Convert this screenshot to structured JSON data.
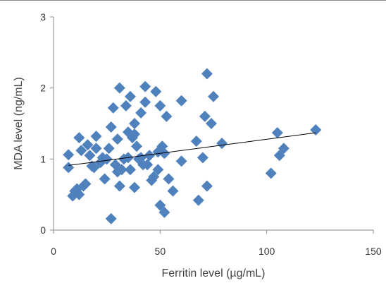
{
  "chart_data": {
    "type": "scatter",
    "xlabel": "Ferritin level (µg/mL)",
    "ylabel": "MDA level (ng/mL)",
    "xlim": [
      0,
      150
    ],
    "ylim": [
      0,
      3
    ],
    "x_ticks": [
      0,
      50,
      100,
      150
    ],
    "y_ticks": [
      0,
      1,
      2,
      3
    ],
    "x_tick_labels": [
      "0",
      "50",
      "100",
      "150"
    ],
    "y_tick_labels": [
      "0",
      "1",
      "2",
      "3"
    ],
    "grid": false,
    "legend": "none",
    "marker": "diamond",
    "colors": {
      "marker": "#4f81bd",
      "trendline": "#000000",
      "axis": "#888888"
    },
    "series": [
      {
        "points": [
          [
            7,
            1.06
          ],
          [
            7,
            0.88
          ],
          [
            9,
            0.48
          ],
          [
            10,
            0.55
          ],
          [
            11,
            0.58
          ],
          [
            12,
            0.5
          ],
          [
            12,
            1.3
          ],
          [
            13,
            1.12
          ],
          [
            14,
            0.62
          ],
          [
            15,
            0.65
          ],
          [
            16,
            1.2
          ],
          [
            17,
            1.05
          ],
          [
            18,
            0.9
          ],
          [
            19,
            0.88
          ],
          [
            20,
            1.15
          ],
          [
            20,
            1.32
          ],
          [
            22,
            0.95
          ],
          [
            23,
            1.02
          ],
          [
            24,
            0.72
          ],
          [
            25,
            1.0
          ],
          [
            26,
            1.15
          ],
          [
            27,
            1.45
          ],
          [
            27,
            0.16
          ],
          [
            28,
            1.72
          ],
          [
            29,
            0.92
          ],
          [
            30,
            0.82
          ],
          [
            30,
            1.28
          ],
          [
            31,
            2.0
          ],
          [
            31,
            0.62
          ],
          [
            32,
            0.85
          ],
          [
            33,
            1.0
          ],
          [
            34,
            1.75
          ],
          [
            35,
            1.38
          ],
          [
            35,
            1.02
          ],
          [
            36,
            1.88
          ],
          [
            36,
            0.85
          ],
          [
            37,
            1.3
          ],
          [
            38,
            1.5
          ],
          [
            38,
            1.35
          ],
          [
            38,
            0.6
          ],
          [
            39,
            1.18
          ],
          [
            40,
            1.0
          ],
          [
            41,
            1.65
          ],
          [
            41,
            1.02
          ],
          [
            42,
            0.92
          ],
          [
            43,
            1.8
          ],
          [
            43,
            2.02
          ],
          [
            44,
            0.92
          ],
          [
            45,
            1.05
          ],
          [
            46,
            0.7
          ],
          [
            47,
            0.75
          ],
          [
            48,
            1.95
          ],
          [
            49,
            1.1
          ],
          [
            49,
            0.85
          ],
          [
            50,
            0.35
          ],
          [
            50,
            1.75
          ],
          [
            51,
            1.18
          ],
          [
            52,
            0.25
          ],
          [
            52,
            1.08
          ],
          [
            53,
            1.6
          ],
          [
            54,
            0.72
          ],
          [
            56,
            0.55
          ],
          [
            60,
            1.82
          ],
          [
            60,
            0.97
          ],
          [
            67,
            1.25
          ],
          [
            68,
            0.42
          ],
          [
            70,
            1.02
          ],
          [
            71,
            1.6
          ],
          [
            72,
            2.2
          ],
          [
            72,
            0.62
          ],
          [
            74,
            1.5
          ],
          [
            75,
            1.88
          ],
          [
            79,
            1.22
          ],
          [
            102,
            0.8
          ],
          [
            105,
            1.37
          ],
          [
            106,
            1.05
          ],
          [
            108,
            1.15
          ],
          [
            123,
            1.41
          ]
        ]
      }
    ],
    "trendline": {
      "type": "linear",
      "x": [
        7,
        123
      ],
      "y": [
        0.91,
        1.37
      ]
    }
  }
}
